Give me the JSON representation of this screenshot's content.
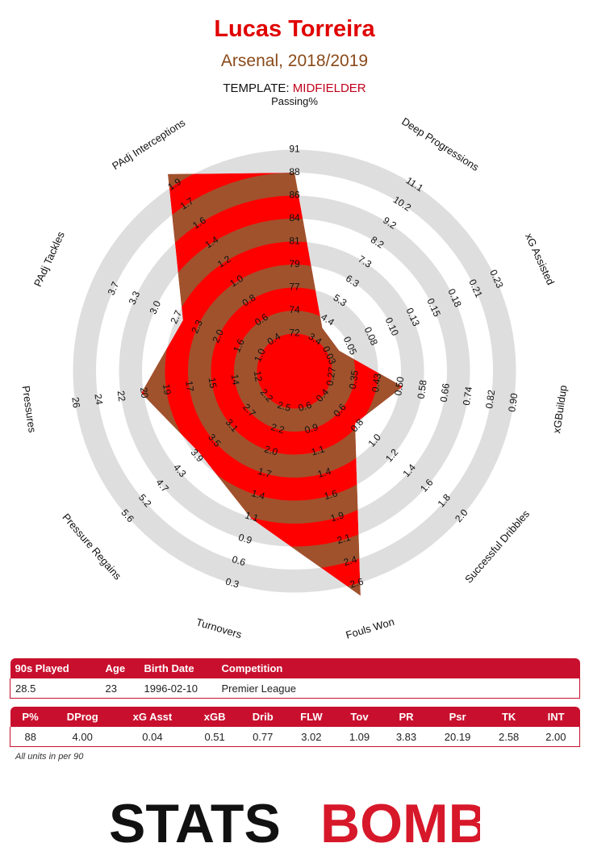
{
  "header": {
    "title": "Lucas Torreira",
    "subtitle": "Arsenal, 2018/2019",
    "template_label": "TEMPLATE:",
    "template_value": "MIDFIELDER"
  },
  "colors": {
    "red": "#ff0000",
    "brown": "#a0522d",
    "ring": "#dedede",
    "accent": "#c8102e"
  },
  "chart_data": {
    "type": "radar",
    "axes": [
      {
        "label": "Passing%",
        "ticks": [
          "72",
          "74",
          "77",
          "79",
          "81",
          "84",
          "86",
          "88",
          "91"
        ],
        "value": 88
      },
      {
        "label": "Deep Progressions",
        "ticks": [
          "3.4",
          "4.4",
          "5.3",
          "6.3",
          "7.3",
          "8.2",
          "9.2",
          "10.2",
          "11.1"
        ],
        "value": 4.0
      },
      {
        "label": "xG Assisted",
        "ticks": [
          "0.03",
          "0.05",
          "0.08",
          "0.10",
          "0.13",
          "0.15",
          "0.18",
          "0.21",
          "0.23"
        ],
        "value": 0.04
      },
      {
        "label": "xGBuildup",
        "ticks": [
          "0.27",
          "0.35",
          "0.43",
          "0.50",
          "0.58",
          "0.66",
          "0.74",
          "0.82",
          "0.90"
        ],
        "value": 0.51
      },
      {
        "label": "Successful Dribbles",
        "ticks": [
          "0.4",
          "0.6",
          "0.8",
          "1.0",
          "1.2",
          "1.4",
          "1.6",
          "1.8",
          "2.0"
        ],
        "value": 0.77
      },
      {
        "label": "Fouls Won",
        "ticks": [
          "0.6",
          "0.9",
          "1.1",
          "1.4",
          "1.6",
          "1.9",
          "2.1",
          "2.4",
          "2.6"
        ],
        "value": 3.02
      },
      {
        "label": "Turnovers",
        "ticks": [
          "2.5",
          "2.2",
          "2.0",
          "1.7",
          "1.4",
          "1.1",
          "0.9",
          "0.6",
          "0.3"
        ],
        "value": 1.09
      },
      {
        "label": "Pressure Regains",
        "ticks": [
          "2.2",
          "2.7",
          "3.1",
          "3.5",
          "3.9",
          "4.3",
          "4.7",
          "5.2",
          "5.6"
        ],
        "value": 3.83
      },
      {
        "label": "Pressures",
        "ticks": [
          "12",
          "14",
          "15",
          "17",
          "19",
          "20",
          "22",
          "24",
          "26"
        ],
        "value": 20.19
      },
      {
        "label": "PAdj Tackles",
        "ticks": [
          "1.0",
          "1.6",
          "2.0",
          "2.3",
          "2.7",
          "3.0",
          "3.3",
          "3.7"
        ],
        "value": 2.58
      },
      {
        "label": "PAdj Interceptions",
        "ticks": [
          "0.4",
          "0.6",
          "0.8",
          "1.0",
          "1.2",
          "1.4",
          "1.6",
          "1.7",
          "1.9"
        ],
        "value": 2.0
      }
    ],
    "grid": true
  },
  "info_table": {
    "headers": [
      "90s Played",
      "Age",
      "Birth Date",
      "Competition"
    ],
    "row": [
      "28.5",
      "23",
      "1996-02-10",
      "Premier League"
    ]
  },
  "stats_table": {
    "headers": [
      "P%",
      "DProg",
      "xG Asst",
      "xGB",
      "Drib",
      "FLW",
      "Tov",
      "PR",
      "Psr",
      "TK",
      "INT"
    ],
    "row": [
      "88",
      "4.00",
      "0.04",
      "0.51",
      "0.77",
      "3.02",
      "1.09",
      "3.83",
      "20.19",
      "2.58",
      "2.00"
    ]
  },
  "note": "All units in per 90",
  "logo": {
    "part1": "STATS",
    "part2": "BOMB"
  }
}
